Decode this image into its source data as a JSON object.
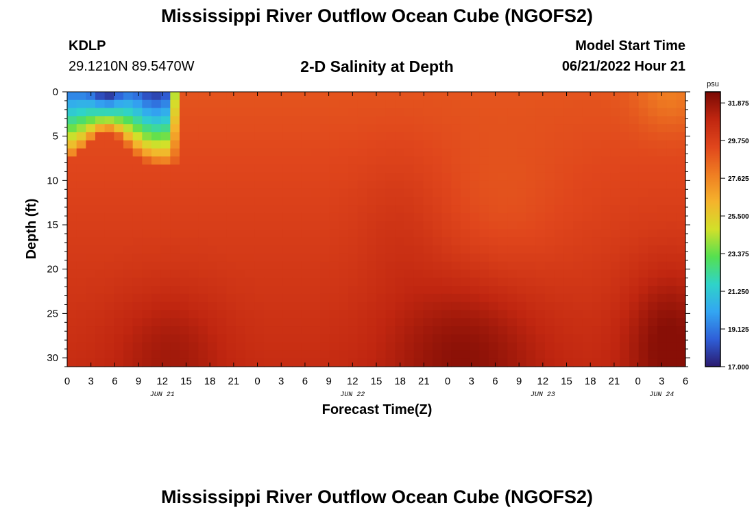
{
  "page": {
    "title": "Mississippi River Outflow Ocean Cube (NGOFS2)",
    "station": "KDLP",
    "coords": "29.1210N  89.5470W",
    "subtitle": "2-D Salinity at Depth",
    "model_start_label": "Model Start Time",
    "model_start_value": "06/21/2022 Hour 21",
    "second_title": "Mississippi River Outflow Ocean Cube (NGOFS2)"
  },
  "chart_data": {
    "type": "heatmap",
    "title": "2-D Salinity at Depth",
    "xlabel": "Forecast Time(Z)",
    "ylabel": "Depth (ft)",
    "x_tick_labels": [
      "0",
      "3",
      "6",
      "9",
      "12",
      "15",
      "18",
      "21",
      "0",
      "3",
      "6",
      "9",
      "12",
      "15",
      "18",
      "21",
      "0",
      "3",
      "6",
      "9",
      "12",
      "15",
      "18",
      "21",
      "0",
      "3",
      "6"
    ],
    "day_labels": [
      {
        "label": "JUN 21",
        "hour": 12
      },
      {
        "label": "JUN 22",
        "hour": 36
      },
      {
        "label": "JUN 23",
        "hour": 60
      },
      {
        "label": "JUN 24",
        "hour": 75
      }
    ],
    "xlim_hours": [
      0,
      78
    ],
    "y_ticks": [
      0,
      5,
      10,
      15,
      20,
      25,
      30
    ],
    "ylim_ft": [
      0,
      31
    ],
    "y_inverted": true,
    "colorbar": {
      "unit": "psu",
      "min": 17.0,
      "max": 32.5,
      "tick_labels": [
        "31.875",
        "29.750",
        "27.625",
        "25.500",
        "23.375",
        "21.250",
        "19.125",
        "17.000"
      ],
      "colors": [
        "#2a1a6e",
        "#2f5fd8",
        "#33a6f2",
        "#2fd3c9",
        "#55e050",
        "#d2e02a",
        "#f5b32c",
        "#ef7d22",
        "#e0461c",
        "#c02610",
        "#7a0a04"
      ]
    },
    "surface_freshwater_lens": {
      "description_hours": [
        0,
        13
      ],
      "min_salinity_psu": 17.0,
      "min_at_hour": 5,
      "lens_depth_ft": [
        4,
        8
      ]
    },
    "deep_salinity_psu": [
      30.5,
      32.2
    ]
  }
}
